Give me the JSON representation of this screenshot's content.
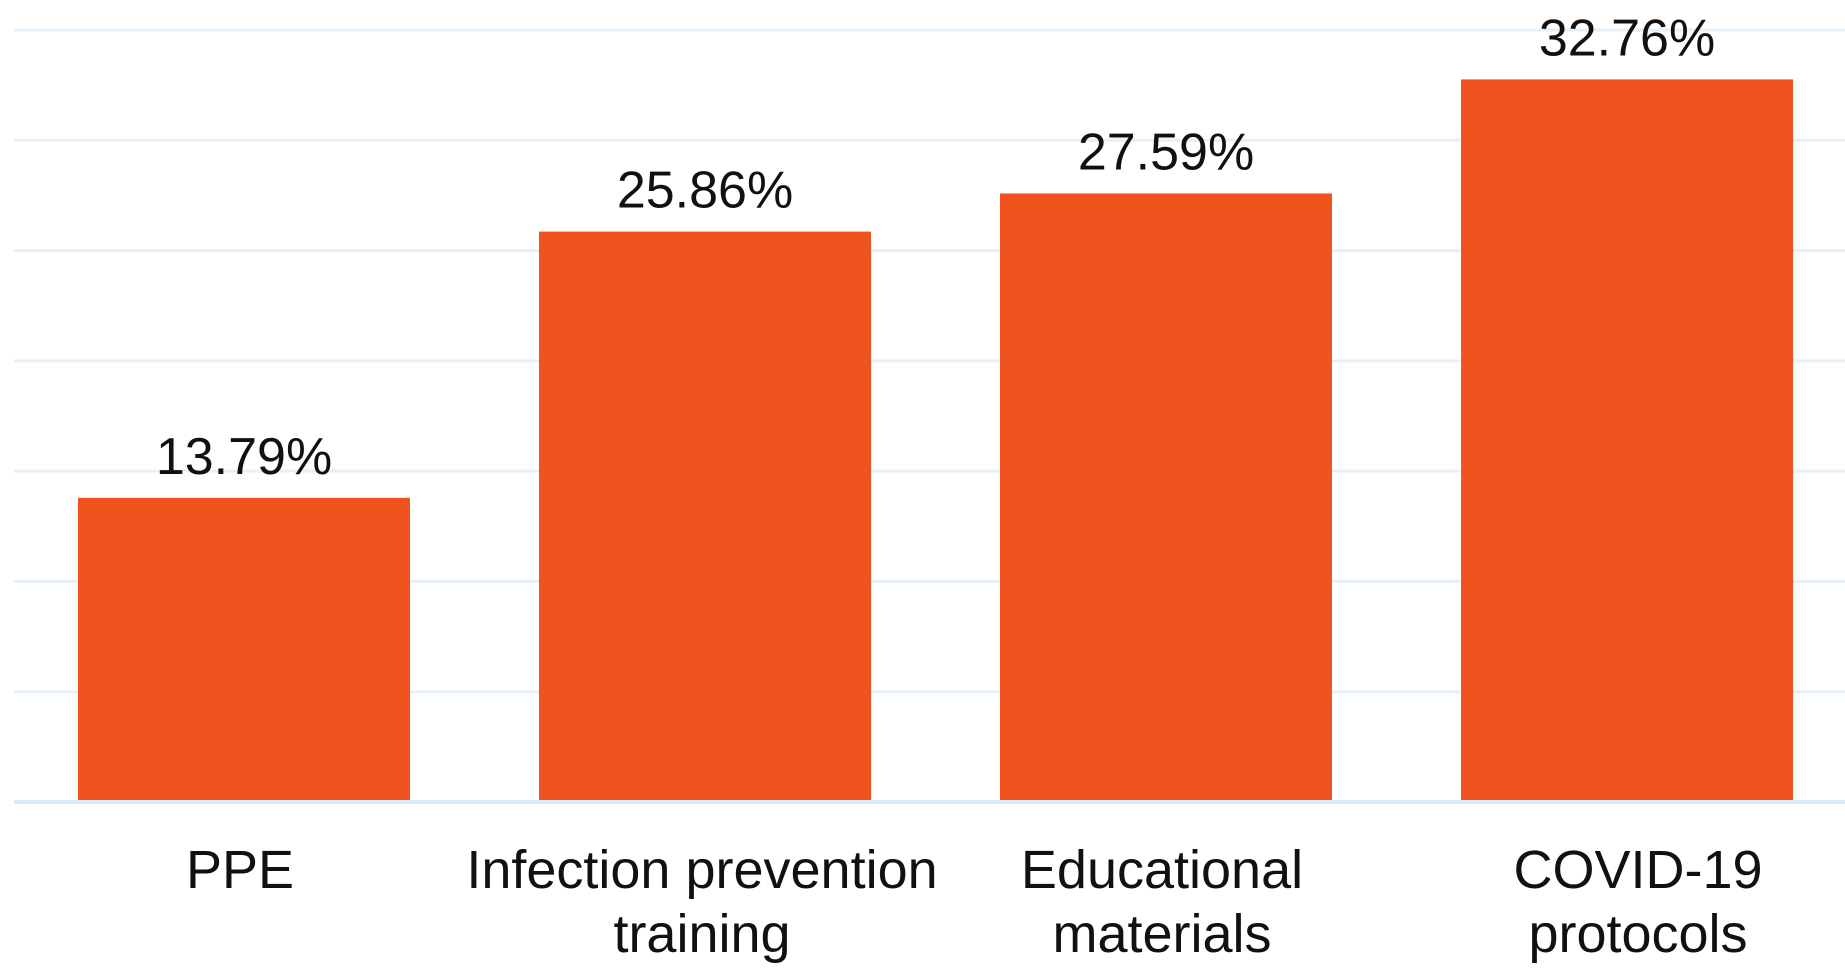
{
  "chart_data": {
    "type": "bar",
    "categories": [
      "PPE",
      "Infection prevention training",
      "Educational materials",
      "COVID-19 protocols"
    ],
    "category_lines": [
      [
        "PPE"
      ],
      [
        "Infection prevention",
        "training"
      ],
      [
        "Educational",
        "materials"
      ],
      [
        "COVID-19",
        "protocols"
      ]
    ],
    "values": [
      13.79,
      25.86,
      27.59,
      32.76
    ],
    "data_labels": [
      "13.79%",
      "25.86%",
      "27.59%",
      "32.76%"
    ],
    "title": "",
    "xlabel": "",
    "ylabel": "",
    "ylim": [
      0,
      35
    ],
    "grid": true,
    "legend": "none",
    "colors": {
      "bar": "#f0531e",
      "grid": "#e6f0f8",
      "axis": "#dbe9f5",
      "text": "#111111"
    }
  }
}
